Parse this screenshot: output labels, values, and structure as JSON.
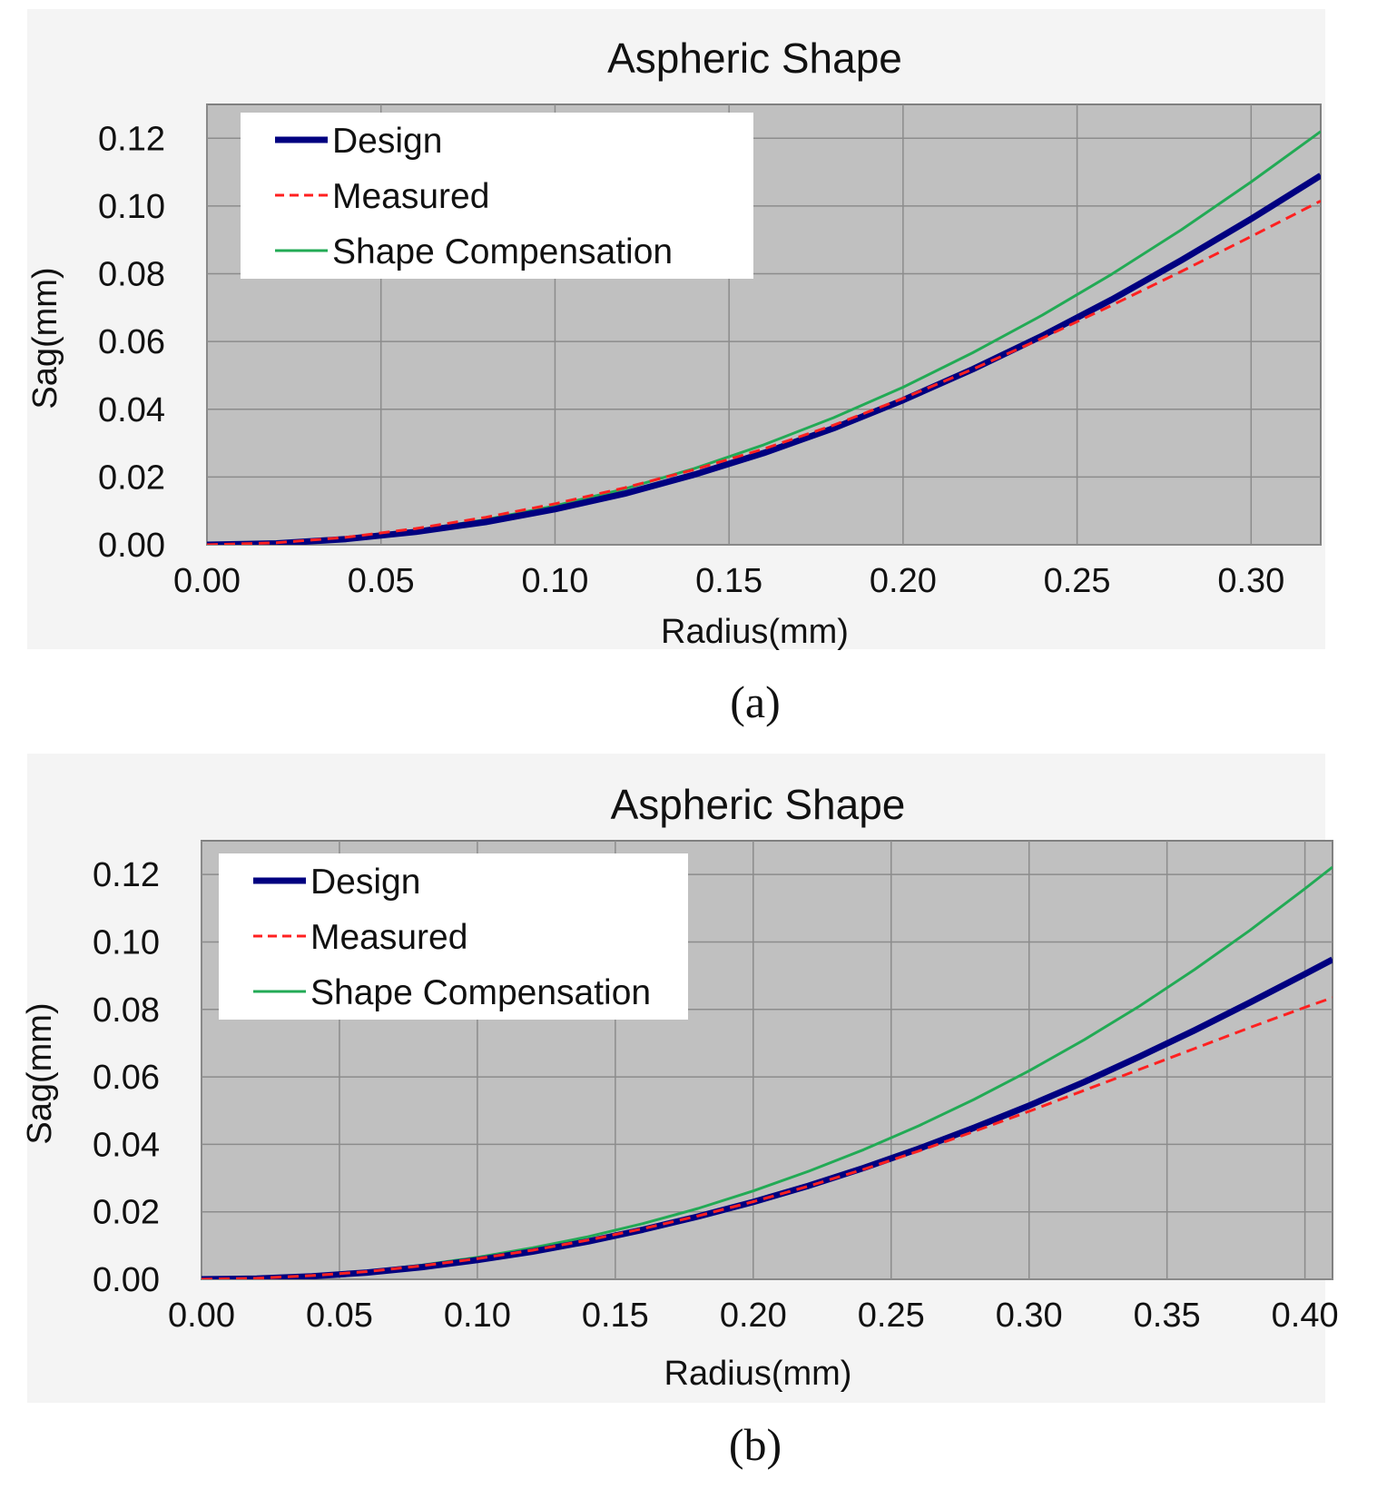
{
  "chart_data": [
    {
      "type": "line",
      "panel_label": "(a)",
      "title": "Aspheric Shape",
      "xlabel": "Radius(mm)",
      "ylabel": "Sag(mm)",
      "xlim": [
        0,
        0.32
      ],
      "ylim": [
        0,
        0.13
      ],
      "xticks": [
        "0.00",
        "0.05",
        "0.10",
        "0.15",
        "0.20",
        "0.25",
        "0.30"
      ],
      "yticks": [
        "0.00",
        "0.02",
        "0.04",
        "0.06",
        "0.08",
        "0.10",
        "0.12"
      ],
      "grid": true,
      "legend_position": "top-left",
      "series": [
        {
          "name": "Design",
          "color": "#000080",
          "style": "solid-thick",
          "x": [
            0,
            0.02,
            0.04,
            0.06,
            0.08,
            0.1,
            0.12,
            0.14,
            0.16,
            0.18,
            0.2,
            0.22,
            0.24,
            0.26,
            0.28,
            0.3,
            0.32
          ],
          "y": [
            0.0,
            0.0004,
            0.0017,
            0.0038,
            0.0067,
            0.0105,
            0.0151,
            0.0207,
            0.0271,
            0.0344,
            0.0427,
            0.0518,
            0.0617,
            0.0724,
            0.084,
            0.0962,
            0.109
          ]
        },
        {
          "name": "Measured",
          "color": "#ff2020",
          "style": "dashed",
          "x": [
            0,
            0.02,
            0.04,
            0.06,
            0.08,
            0.1,
            0.12,
            0.14,
            0.16,
            0.18,
            0.2,
            0.22,
            0.24,
            0.26,
            0.28,
            0.3,
            0.32
          ],
          "y": [
            0.0,
            0.0006,
            0.0022,
            0.0048,
            0.0081,
            0.0121,
            0.0168,
            0.0222,
            0.0283,
            0.0353,
            0.0432,
            0.0518,
            0.061,
            0.0707,
            0.0807,
            0.091,
            0.1015
          ]
        },
        {
          "name": "Shape Compensation",
          "color": "#22aa55",
          "style": "solid",
          "x": [
            0,
            0.02,
            0.04,
            0.06,
            0.08,
            0.1,
            0.12,
            0.14,
            0.16,
            0.18,
            0.2,
            0.22,
            0.24,
            0.26,
            0.28,
            0.3,
            0.32
          ],
          "y": [
            0.0,
            0.0005,
            0.0019,
            0.0042,
            0.0074,
            0.0115,
            0.0165,
            0.0225,
            0.0295,
            0.0375,
            0.0465,
            0.0567,
            0.0678,
            0.0799,
            0.093,
            0.1071,
            0.122
          ]
        }
      ]
    },
    {
      "type": "line",
      "panel_label": "(b)",
      "title": "Aspheric Shape",
      "xlabel": "Radius(mm)",
      "ylabel": "Sag(mm)",
      "xlim": [
        0,
        0.41
      ],
      "ylim": [
        0,
        0.13
      ],
      "xticks": [
        "0.00",
        "0.05",
        "0.10",
        "0.15",
        "0.20",
        "0.25",
        "0.30",
        "0.35",
        "0.40"
      ],
      "yticks": [
        "0.00",
        "0.02",
        "0.04",
        "0.06",
        "0.08",
        "0.10",
        "0.12"
      ],
      "grid": true,
      "legend_position": "top-left",
      "series": [
        {
          "name": "Design",
          "color": "#000080",
          "style": "solid-thick",
          "x": [
            0,
            0.02,
            0.04,
            0.06,
            0.08,
            0.1,
            0.12,
            0.14,
            0.16,
            0.18,
            0.2,
            0.22,
            0.24,
            0.26,
            0.28,
            0.3,
            0.32,
            0.34,
            0.36,
            0.38,
            0.4,
            0.41
          ],
          "y": [
            0.0,
            0.0002,
            0.0009,
            0.002,
            0.0036,
            0.0057,
            0.0082,
            0.0112,
            0.0147,
            0.0186,
            0.0229,
            0.0277,
            0.033,
            0.0387,
            0.0449,
            0.0515,
            0.0585,
            0.066,
            0.0738,
            0.082,
            0.0905,
            0.0948
          ]
        },
        {
          "name": "Measured",
          "color": "#ff2020",
          "style": "dashed",
          "x": [
            0,
            0.02,
            0.04,
            0.06,
            0.08,
            0.1,
            0.12,
            0.14,
            0.16,
            0.18,
            0.2,
            0.22,
            0.24,
            0.26,
            0.28,
            0.3,
            0.32,
            0.34,
            0.36,
            0.38,
            0.4,
            0.41
          ],
          "y": [
            0.0,
            0.0003,
            0.0011,
            0.0023,
            0.004,
            0.0061,
            0.0086,
            0.0116,
            0.015,
            0.0188,
            0.023,
            0.0276,
            0.0326,
            0.038,
            0.0438,
            0.0498,
            0.056,
            0.0622,
            0.0684,
            0.0746,
            0.0806,
            0.0835
          ]
        },
        {
          "name": "Shape Compensation",
          "color": "#22aa55",
          "style": "solid",
          "x": [
            0,
            0.02,
            0.04,
            0.06,
            0.08,
            0.1,
            0.12,
            0.14,
            0.16,
            0.18,
            0.2,
            0.22,
            0.24,
            0.26,
            0.28,
            0.3,
            0.32,
            0.34,
            0.36,
            0.38,
            0.4,
            0.41
          ],
          "y": [
            0.0,
            0.0003,
            0.0011,
            0.0024,
            0.0042,
            0.0065,
            0.0093,
            0.0126,
            0.0165,
            0.021,
            0.0262,
            0.032,
            0.0384,
            0.0455,
            0.0533,
            0.0618,
            0.071,
            0.081,
            0.0918,
            0.1034,
            0.1158,
            0.1222
          ]
        }
      ]
    }
  ]
}
